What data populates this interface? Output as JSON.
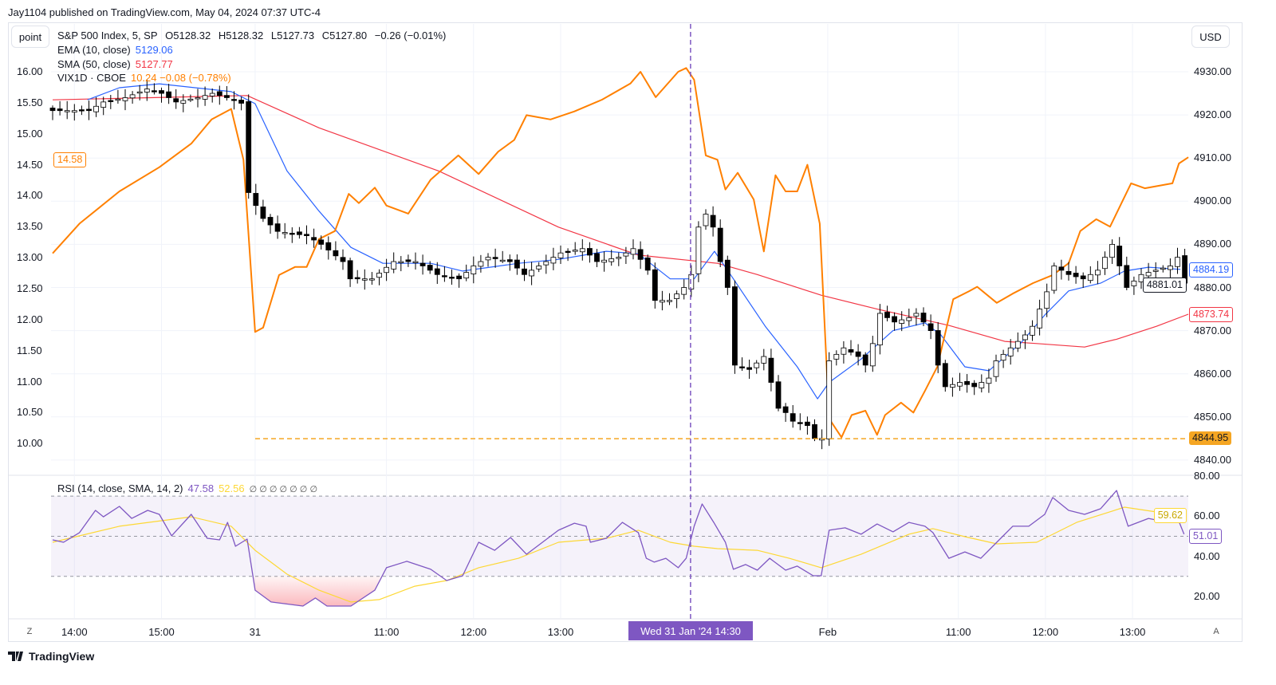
{
  "header": {
    "published": "Jay1104 published on TradingView.com, May 04, 2024 07:37 UTC-4"
  },
  "buttons": {
    "point": "point",
    "currency": "USD",
    "auto": "A",
    "zoom": "Z"
  },
  "legend": {
    "symbol": "S&P 500 Index, 5, SP",
    "open": "O5128.32",
    "high": "H5128.32",
    "low": "L5127.73",
    "close": "C5127.80",
    "change": "−0.26 (−0.01%)",
    "ema_label": "EMA (10, close)",
    "ema_value": "5129.06",
    "sma_label": "SMA (50, close)",
    "sma_value": "5127.77",
    "vix_label": "VIX1D · CBOE",
    "vix_value": "10.24 −0.08 (−0.78%)",
    "rsi_label": "RSI (14, close, SMA, 14, 2)",
    "rsi_value": "47.58",
    "rsi_sma_value": "52.56",
    "rsi_extra": "∅ ∅ ∅ ∅ ∅ ∅ ∅"
  },
  "crosshair_label": "Wed 31 Jan '24  14:30",
  "footer": {
    "brand": "TradingView"
  },
  "colors": {
    "ema": "#2962ff",
    "sma": "#f23645",
    "vix": "#ff8000",
    "rsi": "#7e57c2",
    "rsi_sma": "#fdd835",
    "support": "#f5a623",
    "crosshair": "#7e57c2"
  },
  "chart_data": {
    "type": "candlestick",
    "title": "S&P 500 Index, 5, SP",
    "bar_interval_minutes": 5,
    "x_ticks": [
      {
        "bar": 3,
        "label": "14:00"
      },
      {
        "bar": 15,
        "label": "15:00"
      },
      {
        "bar": 27.9,
        "label": "31"
      },
      {
        "bar": 46,
        "label": "11:00"
      },
      {
        "bar": 58,
        "label": "12:00"
      },
      {
        "bar": 70,
        "label": "13:00"
      },
      {
        "bar": 106.8,
        "label": "Feb"
      },
      {
        "bar": 124.8,
        "label": "11:00"
      },
      {
        "bar": 136.8,
        "label": "12:00"
      },
      {
        "bar": 148.8,
        "label": "13:00"
      }
    ],
    "price_axis": {
      "ylim": [
        4836,
        4936
      ],
      "ticks": [
        "4930.00",
        "4920.00",
        "4910.00",
        "4900.00",
        "4890.00",
        "4880.00",
        "4870.00",
        "4860.00",
        "4850.00",
        "4840.00"
      ]
    },
    "vix_axis": {
      "ticks": [
        "16.00",
        "15.50",
        "15.00",
        "14.50",
        "14.00",
        "13.50",
        "13.00",
        "12.50",
        "12.00",
        "11.50",
        "11.00",
        "10.50",
        "10.00"
      ]
    },
    "rsi_axis": {
      "ticks": [
        "80.00",
        "60.00",
        "40.00",
        "20.00"
      ],
      "upper_band": 70,
      "lower_band": 30
    },
    "price_badges": {
      "ema": "4884.19",
      "close": "4881.01",
      "sma": "4873.74",
      "support": "4844.95",
      "vix": "14.58",
      "rsi_sma": "59.62",
      "rsi": "51.01"
    },
    "support_level": 4844.95,
    "crosshair_bar": 87.9,
    "close_keypoints": [
      [
        0,
        4921
      ],
      [
        5,
        4921
      ],
      [
        7,
        4923
      ],
      [
        10,
        4924
      ],
      [
        13,
        4926
      ],
      [
        15,
        4925
      ],
      [
        17,
        4923
      ],
      [
        20,
        4924
      ],
      [
        22,
        4925
      ],
      [
        24,
        4924
      ],
      [
        26,
        4922.7
      ],
      [
        27,
        4902
      ],
      [
        29,
        4896
      ],
      [
        31,
        4893
      ],
      [
        35,
        4892
      ],
      [
        37,
        4890
      ],
      [
        40,
        4886
      ],
      [
        41,
        4882
      ],
      [
        44,
        4882
      ],
      [
        47,
        4886
      ],
      [
        50,
        4886
      ],
      [
        53,
        4883
      ],
      [
        56,
        4882
      ],
      [
        58,
        4885
      ],
      [
        60,
        4887
      ],
      [
        63,
        4886
      ],
      [
        65,
        4883
      ],
      [
        68,
        4886
      ],
      [
        70,
        4888
      ],
      [
        73,
        4889
      ],
      [
        75,
        4886
      ],
      [
        78,
        4887
      ],
      [
        80,
        4889
      ],
      [
        82,
        4884
      ],
      [
        83,
        4877
      ],
      [
        85,
        4877
      ],
      [
        87,
        4880
      ],
      [
        88,
        4883
      ],
      [
        89,
        4894
      ],
      [
        90,
        4897
      ],
      [
        91,
        4894
      ],
      [
        92,
        4886
      ],
      [
        93,
        4880
      ],
      [
        94,
        4862
      ],
      [
        96,
        4861
      ],
      [
        98,
        4864
      ],
      [
        99,
        4858
      ],
      [
        100,
        4852
      ],
      [
        101,
        4851
      ],
      [
        102,
        4849
      ],
      [
        104,
        4848
      ],
      [
        105,
        4845
      ],
      [
        106,
        4845
      ],
      [
        107,
        4863
      ],
      [
        109,
        4866
      ],
      [
        111,
        4864
      ],
      [
        112,
        4862
      ],
      [
        113,
        4867
      ],
      [
        114,
        4874
      ],
      [
        116,
        4872
      ],
      [
        118,
        4873
      ],
      [
        119,
        4874
      ],
      [
        121,
        4870
      ],
      [
        122,
        4862
      ],
      [
        123,
        4857
      ],
      [
        125,
        4858
      ],
      [
        127,
        4857
      ],
      [
        129,
        4859
      ],
      [
        130,
        4863
      ],
      [
        132,
        4866
      ],
      [
        134,
        4869
      ],
      [
        135,
        4871
      ],
      [
        137,
        4879
      ],
      [
        138,
        4885
      ],
      [
        140,
        4883
      ],
      [
        142,
        4882
      ],
      [
        144,
        4884
      ],
      [
        145,
        4887
      ],
      [
        146,
        4890
      ],
      [
        147,
        4885
      ],
      [
        148,
        4880
      ],
      [
        150,
        4883
      ],
      [
        152,
        4884
      ],
      [
        154,
        4885
      ],
      [
        155,
        4887
      ],
      [
        156,
        4881
      ]
    ],
    "ema_keypoints": [
      [
        4.8,
        4923.5
      ],
      [
        9.2,
        4926.3
      ],
      [
        14.7,
        4927.2
      ],
      [
        24.6,
        4925.4
      ],
      [
        27.9,
        4922.6
      ],
      [
        32.3,
        4907
      ],
      [
        36.7,
        4897.7
      ],
      [
        41.1,
        4889.3
      ],
      [
        45.5,
        4885.6
      ],
      [
        52.1,
        4885.6
      ],
      [
        56.5,
        4883.8
      ],
      [
        64.2,
        4885.6
      ],
      [
        69.7,
        4886.5
      ],
      [
        76.3,
        4888.4
      ],
      [
        80.7,
        4887.8
      ],
      [
        85.1,
        4882
      ],
      [
        88.4,
        4882
      ],
      [
        91.2,
        4888.4
      ],
      [
        93.8,
        4882
      ],
      [
        98.2,
        4871
      ],
      [
        102.6,
        4861.6
      ],
      [
        105.4,
        4854.2
      ],
      [
        107,
        4858
      ],
      [
        111.4,
        4863.4
      ],
      [
        115.8,
        4870
      ],
      [
        120.2,
        4871.8
      ],
      [
        122.4,
        4869
      ],
      [
        125.7,
        4861.6
      ],
      [
        129,
        4860.7
      ],
      [
        133.4,
        4867.1
      ],
      [
        136.7,
        4873.6
      ],
      [
        140,
        4879.2
      ],
      [
        144.4,
        4881
      ],
      [
        147.7,
        4883.8
      ],
      [
        151,
        4884.7
      ],
      [
        155.4,
        4884.2
      ]
    ],
    "sma_keypoints": [
      [
        0,
        4923.5
      ],
      [
        26.8,
        4924.5
      ],
      [
        36.7,
        4917
      ],
      [
        53.2,
        4907
      ],
      [
        69.7,
        4894
      ],
      [
        80.7,
        4887.5
      ],
      [
        91.6,
        4885.6
      ],
      [
        97.1,
        4883
      ],
      [
        105.9,
        4878.2
      ],
      [
        113.6,
        4875
      ],
      [
        123.5,
        4871.2
      ],
      [
        131.2,
        4867.5
      ],
      [
        135.6,
        4867
      ],
      [
        142.2,
        4866.2
      ],
      [
        146.6,
        4868
      ],
      [
        152.1,
        4871
      ],
      [
        156.5,
        4873.8
      ]
    ],
    "vix_keypoints": [
      [
        0,
        13.07
      ],
      [
        3.7,
        13.55
      ],
      [
        9.2,
        14.07
      ],
      [
        14.7,
        14.46
      ],
      [
        19.1,
        14.84
      ],
      [
        21.9,
        15.23
      ],
      [
        24.6,
        15.4
      ],
      [
        26.3,
        14.58
      ],
      [
        27.9,
        11.8
      ],
      [
        29,
        11.87
      ],
      [
        31.2,
        12.72
      ],
      [
        33.4,
        12.85
      ],
      [
        35,
        12.85
      ],
      [
        36.7,
        13.3
      ],
      [
        38.9,
        13.43
      ],
      [
        40.8,
        14.03
      ],
      [
        42.2,
        13.88
      ],
      [
        44.4,
        14.13
      ],
      [
        46,
        13.84
      ],
      [
        49,
        13.71
      ],
      [
        52.1,
        14.26
      ],
      [
        55.9,
        14.65
      ],
      [
        58.7,
        14.35
      ],
      [
        61.4,
        14.71
      ],
      [
        63.6,
        14.9
      ],
      [
        65.3,
        15.3
      ],
      [
        68.6,
        15.23
      ],
      [
        71.9,
        15.36
      ],
      [
        75.7,
        15.55
      ],
      [
        79.6,
        15.81
      ],
      [
        81,
        16
      ],
      [
        83.1,
        15.59
      ],
      [
        86.2,
        16
      ],
      [
        87.3,
        16.06
      ],
      [
        88.4,
        15.87
      ],
      [
        90,
        14.65
      ],
      [
        91.6,
        14.58
      ],
      [
        92.7,
        14.1
      ],
      [
        94.4,
        14.37
      ],
      [
        96.6,
        13.94
      ],
      [
        98,
        13.1
      ],
      [
        99.6,
        14.33
      ],
      [
        101,
        14.07
      ],
      [
        102.6,
        14.07
      ],
      [
        104,
        14.5
      ],
      [
        105.7,
        13.55
      ],
      [
        107,
        10.4
      ],
      [
        108.7,
        10.1
      ],
      [
        110.1,
        10.46
      ],
      [
        112,
        10.53
      ],
      [
        113.6,
        10.14
      ],
      [
        114.7,
        10.46
      ],
      [
        116.9,
        10.66
      ],
      [
        118.6,
        10.5
      ],
      [
        120.2,
        10.85
      ],
      [
        121.9,
        11.24
      ],
      [
        124.1,
        12.33
      ],
      [
        126.3,
        12.46
      ],
      [
        127.4,
        12.53
      ],
      [
        130.1,
        12.27
      ],
      [
        132.3,
        12.42
      ],
      [
        135.1,
        12.59
      ],
      [
        137.8,
        12.72
      ],
      [
        140,
        12.91
      ],
      [
        141.6,
        13.43
      ],
      [
        143.8,
        13.62
      ],
      [
        145.7,
        13.5
      ],
      [
        148.6,
        14.2
      ],
      [
        150.5,
        14.12
      ],
      [
        154.3,
        14.2
      ],
      [
        155.2,
        14.52
      ],
      [
        156.5,
        14.62
      ]
    ],
    "rsi_keypoints": [
      [
        0,
        48.2
      ],
      [
        1.5,
        47
      ],
      [
        3.7,
        51.8
      ],
      [
        5.9,
        62.9
      ],
      [
        7,
        59.7
      ],
      [
        9.2,
        64.9
      ],
      [
        10.9,
        58.9
      ],
      [
        13.1,
        62.9
      ],
      [
        14.7,
        60.9
      ],
      [
        16.4,
        50.2
      ],
      [
        19.1,
        60.9
      ],
      [
        21.3,
        49
      ],
      [
        23,
        48.2
      ],
      [
        24.1,
        56.9
      ],
      [
        25.2,
        45
      ],
      [
        26.8,
        48.6
      ],
      [
        27.9,
        23.1
      ],
      [
        30.1,
        17.2
      ],
      [
        34.5,
        15.2
      ],
      [
        36.2,
        19.2
      ],
      [
        37.8,
        15.2
      ],
      [
        41.1,
        15.2
      ],
      [
        44.4,
        23.1
      ],
      [
        46,
        34.3
      ],
      [
        48.8,
        37.5
      ],
      [
        52.1,
        33.5
      ],
      [
        54.3,
        27.9
      ],
      [
        56.5,
        30.3
      ],
      [
        58.7,
        47
      ],
      [
        60.9,
        43
      ],
      [
        63.1,
        49.4
      ],
      [
        65.3,
        41
      ],
      [
        69.7,
        53
      ],
      [
        71.9,
        56.5
      ],
      [
        73.5,
        55
      ],
      [
        74.1,
        47
      ],
      [
        76.3,
        49
      ],
      [
        78.5,
        56.9
      ],
      [
        80.7,
        51.8
      ],
      [
        81.8,
        39
      ],
      [
        82.9,
        37.1
      ],
      [
        84.5,
        39
      ],
      [
        86.2,
        34.3
      ],
      [
        87.3,
        39
      ],
      [
        88.4,
        55
      ],
      [
        89.5,
        66.1
      ],
      [
        91.1,
        56.9
      ],
      [
        92.7,
        47
      ],
      [
        93.8,
        33.5
      ],
      [
        95.5,
        35.9
      ],
      [
        97.1,
        33.1
      ],
      [
        98.8,
        39
      ],
      [
        101,
        33.1
      ],
      [
        102.6,
        35.1
      ],
      [
        104.8,
        30.3
      ],
      [
        105.9,
        30.3
      ],
      [
        107,
        53
      ],
      [
        109.2,
        54.2
      ],
      [
        111.4,
        51
      ],
      [
        113.6,
        56.1
      ],
      [
        115.8,
        52.2
      ],
      [
        118,
        56.9
      ],
      [
        120.2,
        55
      ],
      [
        121.3,
        51.8
      ],
      [
        123.5,
        39
      ],
      [
        125.7,
        42.2
      ],
      [
        127.9,
        39
      ],
      [
        130.1,
        47
      ],
      [
        132.3,
        55
      ],
      [
        134.5,
        55
      ],
      [
        136.7,
        60.9
      ],
      [
        137.8,
        69.3
      ],
      [
        140,
        62.9
      ],
      [
        142.2,
        60.9
      ],
      [
        144.4,
        63.7
      ],
      [
        146.6,
        72.8
      ],
      [
        148.2,
        55
      ],
      [
        151,
        58.9
      ],
      [
        153.7,
        56.9
      ],
      [
        154.8,
        60.9
      ],
      [
        155.9,
        51
      ]
    ],
    "rsi_sma_keypoints": [
      [
        0,
        47
      ],
      [
        9.2,
        55
      ],
      [
        19.1,
        59.7
      ],
      [
        24.6,
        55
      ],
      [
        27.9,
        43
      ],
      [
        32.3,
        31.1
      ],
      [
        36.7,
        23.1
      ],
      [
        41.1,
        17.2
      ],
      [
        45,
        18.4
      ],
      [
        49.9,
        25.1
      ],
      [
        54.3,
        27.9
      ],
      [
        58.7,
        34.3
      ],
      [
        64.2,
        39
      ],
      [
        69.7,
        47
      ],
      [
        76.3,
        49
      ],
      [
        80.7,
        53
      ],
      [
        85.1,
        47
      ],
      [
        88.4,
        45
      ],
      [
        91.6,
        43.8
      ],
      [
        97.1,
        43
      ],
      [
        101.5,
        39
      ],
      [
        105.9,
        34.3
      ],
      [
        111.4,
        41
      ],
      [
        118,
        51
      ],
      [
        121.3,
        53.8
      ],
      [
        125.7,
        49.8
      ],
      [
        130.1,
        46.2
      ],
      [
        135.6,
        47
      ],
      [
        141.1,
        56.9
      ],
      [
        147.7,
        64.5
      ],
      [
        152.1,
        62.1
      ],
      [
        155.9,
        59.7
      ]
    ]
  }
}
